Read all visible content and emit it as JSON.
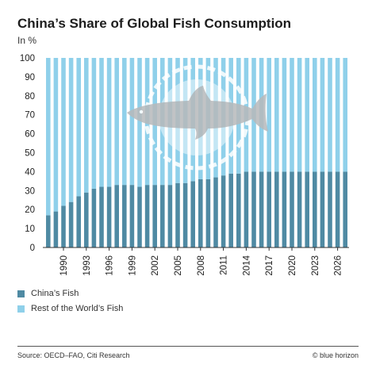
{
  "chart_data": {
    "type": "bar",
    "stacked": true,
    "title": "China’s Share of Global Fish Consumption",
    "unit_label": "In %",
    "xlabel": "",
    "ylabel": "",
    "ylim": [
      0,
      100
    ],
    "yticks": [
      0,
      10,
      20,
      30,
      40,
      50,
      60,
      70,
      80,
      90,
      100
    ],
    "categories": [
      1988,
      1989,
      1990,
      1991,
      1992,
      1993,
      1994,
      1995,
      1996,
      1997,
      1998,
      1999,
      2000,
      2001,
      2002,
      2003,
      2004,
      2005,
      2006,
      2007,
      2008,
      2009,
      2010,
      2011,
      2012,
      2013,
      2014,
      2015,
      2016,
      2017,
      2018,
      2019,
      2020,
      2021,
      2022,
      2023,
      2024,
      2025,
      2026,
      2027
    ],
    "xtick_labels": [
      "1990",
      "1993",
      "1996",
      "1999",
      "2002",
      "2005",
      "2008",
      "2011",
      "2014",
      "2017",
      "2020",
      "2023",
      "2026"
    ],
    "series": [
      {
        "name": "China’s Fish",
        "color": "#4f8aa3",
        "values": [
          17,
          19,
          22,
          24,
          27,
          29,
          31,
          32,
          32,
          33,
          33,
          33,
          32,
          33,
          33,
          33,
          33,
          34,
          34,
          35,
          36,
          36,
          37,
          38,
          39,
          39,
          40,
          40,
          40,
          40,
          40,
          40,
          40,
          40,
          40,
          40,
          40,
          40,
          40,
          40
        ]
      },
      {
        "name": "Rest of the World’s Fish",
        "color": "#8fd0ea",
        "values": [
          83,
          81,
          78,
          76,
          73,
          71,
          69,
          68,
          68,
          67,
          67,
          67,
          68,
          67,
          67,
          67,
          67,
          66,
          66,
          65,
          64,
          64,
          63,
          62,
          61,
          61,
          60,
          60,
          60,
          60,
          60,
          60,
          60,
          60,
          60,
          60,
          60,
          60,
          60,
          60
        ]
      }
    ],
    "grid": false,
    "legend_position": "bottom-left"
  },
  "watermark_icon": "fish-icon",
  "footer": {
    "source": "Source: OECD–FAO, Citi Research",
    "credit": "© blue horizon"
  }
}
